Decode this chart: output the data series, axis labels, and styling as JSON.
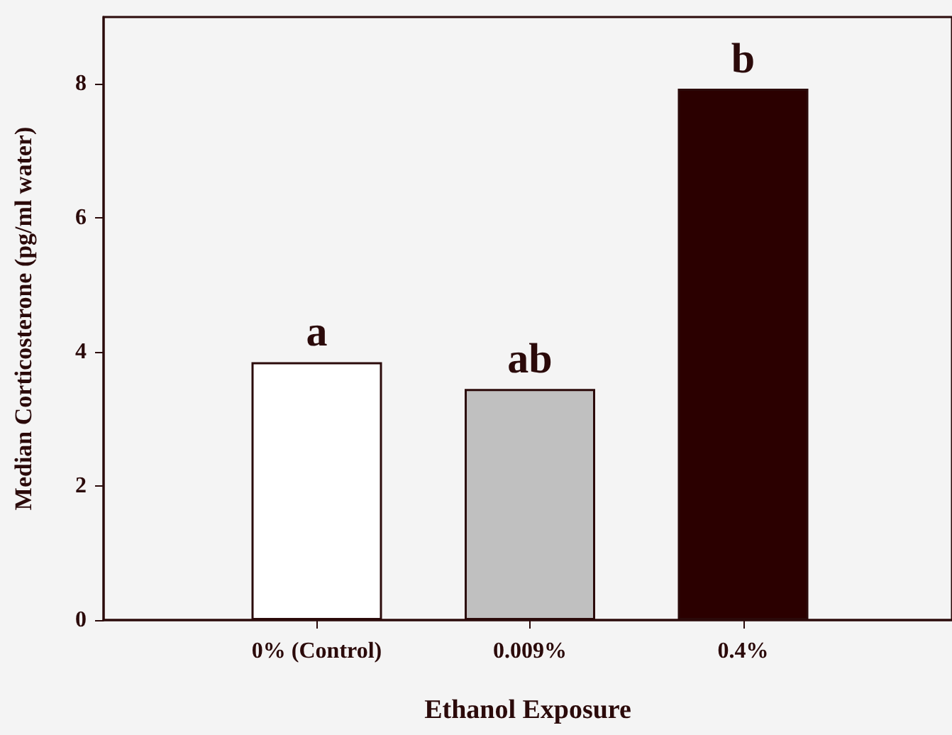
{
  "chart_data": {
    "type": "bar",
    "xlabel": "Ethanol Exposure",
    "ylabel": "Median Corticosterone (pg/ml water)",
    "categories": [
      "0% (Control)",
      "0.009%",
      "0.4%"
    ],
    "values": [
      3.85,
      3.45,
      7.93
    ],
    "colors": [
      "#ffffff",
      "#c0c0c0",
      "#2b0000"
    ],
    "ylim": [
      0,
      9
    ],
    "yticks": [
      0,
      2,
      4,
      6,
      8
    ],
    "grid": false,
    "annotations": [
      {
        "text": "a",
        "x": "0% (Control)",
        "y": 3.85
      },
      {
        "text": "ab",
        "x": "0.009%",
        "y": 3.45
      },
      {
        "text": "b",
        "x": "0.4%",
        "y": 7.93
      }
    ]
  }
}
